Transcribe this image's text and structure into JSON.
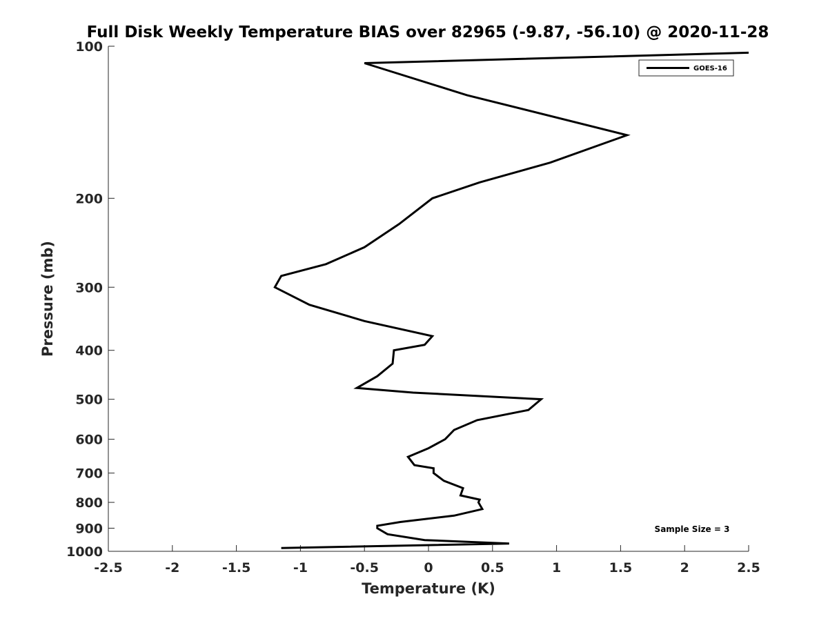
{
  "chart_data": {
    "type": "line",
    "title": "Full Disk Weekly Temperature BIAS over 82965 (-9.87, -56.10) @ 2020-11-28",
    "xlabel": "Temperature (K)",
    "ylabel": "Pressure (mb)",
    "xlim": [
      -2.5,
      2.5
    ],
    "ylim": [
      100,
      1000
    ],
    "yscale": "log",
    "yreversed": true,
    "xticks": [
      -2.5,
      -2,
      -1.5,
      -1,
      -0.5,
      0,
      0.5,
      1,
      1.5,
      2,
      2.5
    ],
    "xtick_labels": [
      "-2.5",
      "-2",
      "-1.5",
      "-1",
      "-0.5",
      "0",
      "0.5",
      "1",
      "1.5",
      "2",
      "2.5"
    ],
    "yticks": [
      100,
      200,
      300,
      400,
      500,
      600,
      700,
      800,
      900,
      1000
    ],
    "ytick_labels": [
      "100",
      "200",
      "300",
      "400",
      "500",
      "600",
      "700",
      "800",
      "900",
      "1000"
    ],
    "grid": false,
    "legend_position": "top-right",
    "series": [
      {
        "name": "GOES-16",
        "color": "#000000",
        "points": [
          [
            2.5,
            103
          ],
          [
            -0.5,
            108
          ],
          [
            0.3,
            125
          ],
          [
            1.55,
            150
          ],
          [
            0.95,
            170
          ],
          [
            0.4,
            186
          ],
          [
            0.03,
            200
          ],
          [
            -0.23,
            225
          ],
          [
            -0.5,
            250
          ],
          [
            -0.8,
            270
          ],
          [
            -1.15,
            285
          ],
          [
            -1.2,
            300
          ],
          [
            -0.93,
            325
          ],
          [
            -0.5,
            350
          ],
          [
            0.03,
            375
          ],
          [
            -0.03,
            390
          ],
          [
            -0.27,
            400
          ],
          [
            -0.28,
            425
          ],
          [
            -0.4,
            450
          ],
          [
            -0.56,
            475
          ],
          [
            -0.12,
            485
          ],
          [
            0.88,
            500
          ],
          [
            0.78,
            525
          ],
          [
            0.38,
            550
          ],
          [
            0.2,
            575
          ],
          [
            0.13,
            600
          ],
          [
            0.0,
            625
          ],
          [
            -0.16,
            650
          ],
          [
            -0.11,
            675
          ],
          [
            0.04,
            685
          ],
          [
            0.04,
            700
          ],
          [
            0.12,
            725
          ],
          [
            0.27,
            750
          ],
          [
            0.25,
            775
          ],
          [
            0.4,
            790
          ],
          [
            0.39,
            800
          ],
          [
            0.42,
            825
          ],
          [
            0.2,
            850
          ],
          [
            -0.22,
            875
          ],
          [
            -0.4,
            890
          ],
          [
            -0.4,
            900
          ],
          [
            -0.32,
            925
          ],
          [
            -0.03,
            950
          ],
          [
            0.63,
            965
          ],
          [
            -1.15,
            985
          ]
        ]
      }
    ],
    "annotation": "Sample Size = 3"
  }
}
